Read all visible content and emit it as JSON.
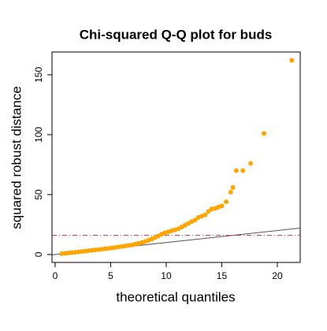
{
  "chart_data": {
    "type": "scatter",
    "title": "Chi-squared Q-Q plot for buds",
    "x_label": "theoretical quantiles",
    "y_label": "squared robust distance",
    "series": [
      {
        "color": "#FFA500",
        "x": [
          0.6,
          0.9,
          1.2,
          1.5,
          1.8,
          2.1,
          2.4,
          2.7,
          3.0,
          3.3,
          3.6,
          3.9,
          4.2,
          4.5,
          4.8,
          5.1,
          5.4,
          5.7,
          6.0,
          6.3,
          6.6,
          6.9,
          7.2,
          7.5,
          7.8,
          8.1,
          8.4,
          8.7,
          9.0,
          9.3,
          9.6,
          9.9,
          10.2,
          10.5,
          10.8,
          11.1,
          11.4,
          11.7,
          12.0,
          12.3,
          12.6,
          12.9,
          13.2,
          13.5,
          13.8,
          14.1,
          14.4,
          14.7,
          15.0,
          15.4,
          15.8,
          16.0,
          16.3,
          16.9,
          17.6,
          18.8,
          21.3
        ],
        "values": [
          0.7,
          1.0,
          1.3,
          1.6,
          1.9,
          2.2,
          2.5,
          2.8,
          3.2,
          3.5,
          3.8,
          4.1,
          4.4,
          4.8,
          5.1,
          5.5,
          5.9,
          6.3,
          6.7,
          7.1,
          7.5,
          8.0,
          8.6,
          9.3,
          10.0,
          10.8,
          11.8,
          13.0,
          14.2,
          15.5,
          17.0,
          18.2,
          19.0,
          19.8,
          20.6,
          21.5,
          23.0,
          24.5,
          26.0,
          27.5,
          28.8,
          31.0,
          32.0,
          33.0,
          36.0,
          38.0,
          38.5,
          39.5,
          40.5,
          44,
          52,
          56,
          70,
          70,
          76,
          101,
          162
        ]
      }
    ],
    "reference_line": {
      "intercept": 0,
      "slope": 1,
      "color": "#555555"
    },
    "cutoff": {
      "value": 16,
      "color": "#cc3333"
    },
    "xlim": [
      -0.28,
      22.06
    ],
    "ylim": [
      -6.6,
      169
    ],
    "xticks": [
      0,
      5,
      10,
      15,
      20
    ],
    "yticks": [
      0,
      50,
      100,
      150
    ]
  }
}
